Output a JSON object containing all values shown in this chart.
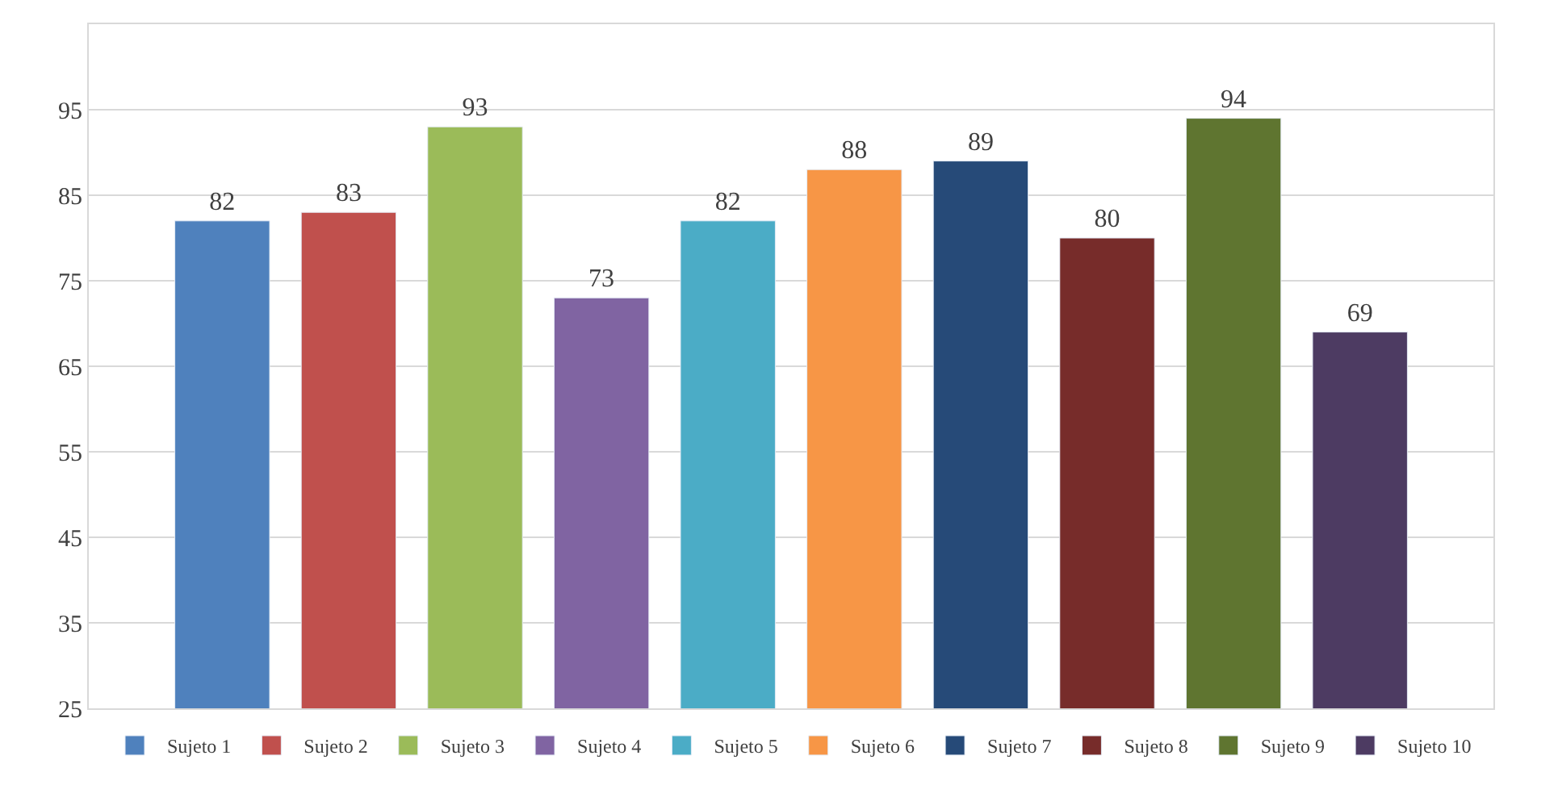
{
  "chart_data": {
    "type": "bar",
    "categories": [
      null
    ],
    "series": [
      {
        "name": "Sujeto 1",
        "color": "#4f81bd",
        "values": [
          82
        ]
      },
      {
        "name": "Sujeto 2",
        "color": "#c0504d",
        "values": [
          83
        ]
      },
      {
        "name": "Sujeto 3",
        "color": "#9bbb59",
        "values": [
          93
        ]
      },
      {
        "name": "Sujeto 4",
        "color": "#8064a2",
        "values": [
          73
        ]
      },
      {
        "name": "Sujeto 5",
        "color": "#4bacc6",
        "values": [
          82
        ]
      },
      {
        "name": "Sujeto 6",
        "color": "#f79646",
        "values": [
          88
        ]
      },
      {
        "name": "Sujeto 7",
        "color": "#264a78",
        "values": [
          89
        ]
      },
      {
        "name": "Sujeto 8",
        "color": "#772c2a",
        "values": [
          80
        ]
      },
      {
        "name": "Sujeto 9",
        "color": "#5f7530",
        "values": [
          94
        ]
      },
      {
        "name": "Sujeto 10",
        "color": "#4d3b62",
        "values": [
          69
        ]
      }
    ],
    "ylim": [
      25,
      105
    ],
    "yticks": [
      25,
      35,
      45,
      55,
      65,
      75,
      85,
      95
    ],
    "grid": "y",
    "legend": "bottom",
    "data_labels": true,
    "tick_labels": "y"
  }
}
